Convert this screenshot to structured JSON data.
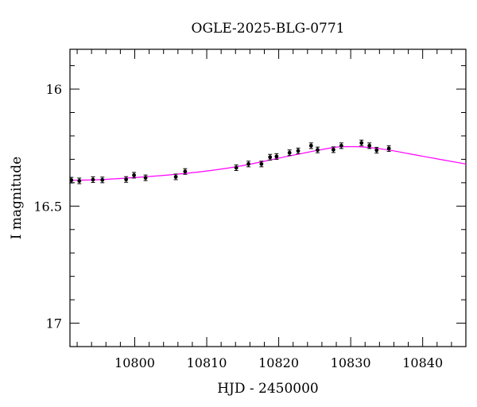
{
  "chart_data": {
    "type": "scatter",
    "title": "OGLE-2025-BLG-0771",
    "xlabel": "HJD - 2450000",
    "ylabel": "I magnitude",
    "xlim": [
      10791,
      10846
    ],
    "ylim": [
      17.1,
      15.83
    ],
    "y_inverted": true,
    "grid": false,
    "x_ticks": [
      10800,
      10810,
      10820,
      10830,
      10840
    ],
    "y_ticks": [
      16,
      16.5,
      17
    ],
    "x_tick_labels": [
      "10800",
      "10810",
      "10820",
      "10830",
      "10840"
    ],
    "y_tick_labels": [
      "16",
      "16.5",
      "17"
    ],
    "colors": {
      "model": "#ff00ff",
      "points": "#000000"
    },
    "points": [
      {
        "x": 10791.2,
        "y": 16.389,
        "err": 0.012
      },
      {
        "x": 10792.3,
        "y": 16.392,
        "err": 0.012
      },
      {
        "x": 10794.2,
        "y": 16.387,
        "err": 0.012
      },
      {
        "x": 10795.5,
        "y": 16.388,
        "err": 0.012
      },
      {
        "x": 10798.8,
        "y": 16.386,
        "err": 0.012
      },
      {
        "x": 10799.9,
        "y": 16.368,
        "err": 0.012
      },
      {
        "x": 10801.5,
        "y": 16.379,
        "err": 0.012
      },
      {
        "x": 10805.7,
        "y": 16.375,
        "err": 0.012
      },
      {
        "x": 10807.0,
        "y": 16.352,
        "err": 0.012
      },
      {
        "x": 10814.1,
        "y": 16.336,
        "err": 0.012
      },
      {
        "x": 10815.8,
        "y": 16.32,
        "err": 0.012
      },
      {
        "x": 10817.6,
        "y": 16.32,
        "err": 0.012
      },
      {
        "x": 10818.8,
        "y": 16.291,
        "err": 0.012
      },
      {
        "x": 10819.7,
        "y": 16.288,
        "err": 0.012
      },
      {
        "x": 10821.5,
        "y": 16.272,
        "err": 0.012
      },
      {
        "x": 10822.7,
        "y": 16.264,
        "err": 0.012
      },
      {
        "x": 10824.5,
        "y": 16.242,
        "err": 0.012
      },
      {
        "x": 10825.4,
        "y": 16.26,
        "err": 0.012
      },
      {
        "x": 10827.6,
        "y": 16.259,
        "err": 0.012
      },
      {
        "x": 10828.7,
        "y": 16.242,
        "err": 0.012
      },
      {
        "x": 10831.5,
        "y": 16.23,
        "err": 0.012
      },
      {
        "x": 10832.6,
        "y": 16.242,
        "err": 0.012
      },
      {
        "x": 10833.6,
        "y": 16.261,
        "err": 0.012
      },
      {
        "x": 10835.3,
        "y": 16.254,
        "err": 0.012
      }
    ],
    "model": {
      "name": "",
      "x": [
        10791,
        10795,
        10800,
        10805,
        10810,
        10815,
        10820,
        10825,
        10828,
        10830,
        10832,
        10835,
        10840,
        10846
      ],
      "y": [
        16.39,
        16.387,
        16.378,
        16.366,
        16.35,
        16.327,
        16.295,
        16.264,
        16.248,
        16.246,
        16.248,
        16.259,
        16.287,
        16.32
      ]
    }
  }
}
